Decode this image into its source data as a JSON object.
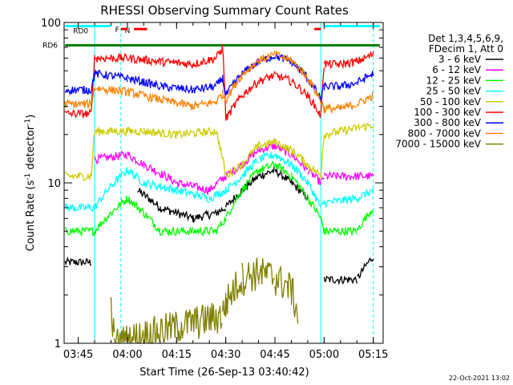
{
  "chart_data": {
    "type": "line",
    "title": "RHESSI Observing Summary Count Rates",
    "xlabel": "Start Time (26-Sep-13 03:40:42)",
    "ylabel": "Count Rate (s⁻¹ detector⁻¹)",
    "ylabel_parts": [
      "Count Rate (s",
      "-1",
      " detector",
      "-1",
      ")"
    ],
    "yscale": "log",
    "ylim": [
      1,
      100
    ],
    "xlim": [
      "03:40:42",
      "05:18:00"
    ],
    "yticks": [
      {
        "value": 1,
        "label": "1"
      },
      {
        "value": 10,
        "label": "10"
      },
      {
        "value": 100,
        "label": "100"
      }
    ],
    "xticks": [
      {
        "time": "03:45",
        "label": "03:45"
      },
      {
        "time": "04:00",
        "label": "04:00"
      },
      {
        "time": "04:15",
        "label": "04:15"
      },
      {
        "time": "04:30",
        "label": "04:30"
      },
      {
        "time": "04:45",
        "label": "04:45"
      },
      {
        "time": "05:00",
        "label": "05:00"
      },
      {
        "time": "05:15",
        "label": "05:15"
      }
    ],
    "legend_header": [
      "Det 1,3,4,5,6,9,",
      "FDecim 1, Att 0"
    ],
    "legend_position": "right",
    "series": [
      {
        "name": "3 - 6 keV",
        "color": "#000000",
        "x": [
          "03:41",
          "03:49",
          "03:50",
          "04:00",
          "04:03",
          "04:10",
          "04:20",
          "04:27",
          "04:30",
          "04:35",
          "04:40",
          "04:45",
          "04:50",
          "04:55",
          "04:59",
          "05:00",
          "05:10",
          "05:15"
        ],
        "y": [
          3.2,
          3.2,
          null,
          null,
          9,
          7,
          6,
          6.5,
          7,
          9,
          11,
          12,
          10,
          8,
          null,
          2.5,
          2.5,
          3.5
        ]
      },
      {
        "name": "6 - 12 keV",
        "color": "#ff00ff",
        "x": [
          "03:50",
          "04:00",
          "04:05",
          "04:15",
          "04:25",
          "04:30",
          "04:35",
          "04:40",
          "04:45",
          "04:50",
          "04:55",
          "04:59",
          "05:00",
          "05:15"
        ],
        "y": [
          14,
          15,
          13,
          10,
          9,
          11,
          13,
          16,
          17,
          15,
          12,
          10,
          11,
          11
        ]
      },
      {
        "name": "12 - 25 keV",
        "color": "#00ff00",
        "x": [
          "03:41",
          "03:50",
          "04:00",
          "04:10",
          "04:20",
          "04:27",
          "04:30",
          "04:35",
          "04:40",
          "04:45",
          "04:50",
          "04:55",
          "04:59",
          "05:00",
          "05:10",
          "05:15"
        ],
        "y": [
          5,
          5,
          8,
          5,
          5,
          5,
          6,
          9,
          12,
          13,
          11,
          8,
          6,
          5,
          5,
          7
        ]
      },
      {
        "name": "25 - 50 keV",
        "color": "#00ffff",
        "x": [
          "03:41",
          "03:50",
          "04:00",
          "04:05",
          "04:15",
          "04:25",
          "04:30",
          "04:35",
          "04:40",
          "04:45",
          "04:50",
          "04:55",
          "04:59",
          "05:00",
          "05:10",
          "05:15"
        ],
        "y": [
          7,
          7,
          12,
          10,
          9,
          8,
          9,
          11,
          14,
          15,
          13,
          10,
          7,
          7.5,
          8,
          9
        ]
      },
      {
        "name": "50 - 100 keV",
        "color": "#cccc00",
        "x": [
          "03:41",
          "03:49",
          "03:50",
          "04:05",
          "04:15",
          "04:27",
          "04:30",
          "04:35",
          "04:40",
          "04:45",
          "04:50",
          "04:55",
          "04:59",
          "05:00",
          "05:05",
          "05:15"
        ],
        "y": [
          11,
          11,
          21,
          21,
          20,
          21,
          11,
          13,
          17,
          18,
          16,
          13,
          11,
          20,
          21,
          23
        ]
      },
      {
        "name": "100 - 300 keV",
        "color": "#ff0000",
        "x": [
          "03:41",
          "03:49",
          "03:50",
          "04:00",
          "04:10",
          "04:20",
          "04:27",
          "04:28",
          "04:29",
          "04:30",
          "04:35",
          "04:40",
          "04:45",
          "04:50",
          "04:55",
          "04:59",
          "05:00",
          "05:05",
          "05:10",
          "05:15"
        ],
        "y": [
          27,
          27,
          60,
          60,
          57,
          55,
          60,
          64,
          70,
          25,
          35,
          43,
          47,
          43,
          35,
          26,
          55,
          55,
          57,
          63
        ]
      },
      {
        "name": "300 - 800 keV",
        "color": "#0000ff",
        "x": [
          "03:41",
          "03:49",
          "03:50",
          "04:00",
          "04:10",
          "04:20",
          "04:27",
          "04:29",
          "04:30",
          "04:35",
          "04:40",
          "04:45",
          "04:50",
          "04:55",
          "04:59",
          "05:00",
          "05:05",
          "05:10",
          "05:15"
        ],
        "y": [
          38,
          38,
          48,
          45,
          40,
          38,
          40,
          45,
          35,
          48,
          57,
          62,
          57,
          45,
          33,
          40,
          40,
          42,
          48
        ]
      },
      {
        "name": "800 - 7000 keV",
        "color": "#ff8000",
        "x": [
          "03:41",
          "03:49",
          "03:50",
          "04:00",
          "04:10",
          "04:20",
          "04:27",
          "04:29",
          "04:30",
          "04:35",
          "04:40",
          "04:45",
          "04:50",
          "04:55",
          "04:59",
          "05:00",
          "05:05",
          "05:10",
          "05:15"
        ],
        "y": [
          31,
          31,
          39,
          37,
          33,
          30,
          32,
          36,
          33,
          47,
          58,
          63,
          58,
          45,
          32,
          29,
          29,
          31,
          35
        ]
      },
      {
        "name": "7000 - 15000 keV",
        "color": "#808000",
        "x": [
          "03:55",
          "03:56",
          "04:29",
          "04:30",
          "04:35",
          "04:40",
          "04:45",
          "04:50",
          "04:52"
        ],
        "y": [
          1.7,
          1.0,
          1.5,
          1.8,
          2.6,
          2.8,
          2.6,
          2.2,
          1.5
        ]
      }
    ],
    "flags": [
      {
        "label": "RD0",
        "kind": "band",
        "color": "#00ffff",
        "x": [
          [
            "03:41",
            "03:55"
          ],
          [
            "05:00",
            "05:17"
          ]
        ],
        "y": 95
      },
      {
        "label": "N",
        "kind": "marker",
        "color": "#00ffff",
        "x": "04:00"
      },
      {
        "label": "F",
        "kind": "band",
        "color": "#ff0000",
        "x": [
          [
            "03:58",
            "04:00"
          ],
          [
            "04:02",
            "04:06"
          ],
          [
            "04:57",
            "04:59"
          ]
        ],
        "y": 91
      },
      {
        "label": "RD6",
        "kind": "band",
        "color": "#008000",
        "x": [
          [
            "03:41",
            "05:17"
          ]
        ],
        "y": 72
      }
    ],
    "vlines": [
      {
        "time": "03:50",
        "color": "#00ffff",
        "style": "solid"
      },
      {
        "time": "03:58",
        "color": "#00ffff",
        "style": "dashed"
      },
      {
        "time": "04:59",
        "color": "#00ffff",
        "style": "solid"
      },
      {
        "time": "05:15",
        "color": "#00ffff",
        "style": "dashed"
      }
    ],
    "footer_date": "22-Oct-2021 13:02"
  }
}
